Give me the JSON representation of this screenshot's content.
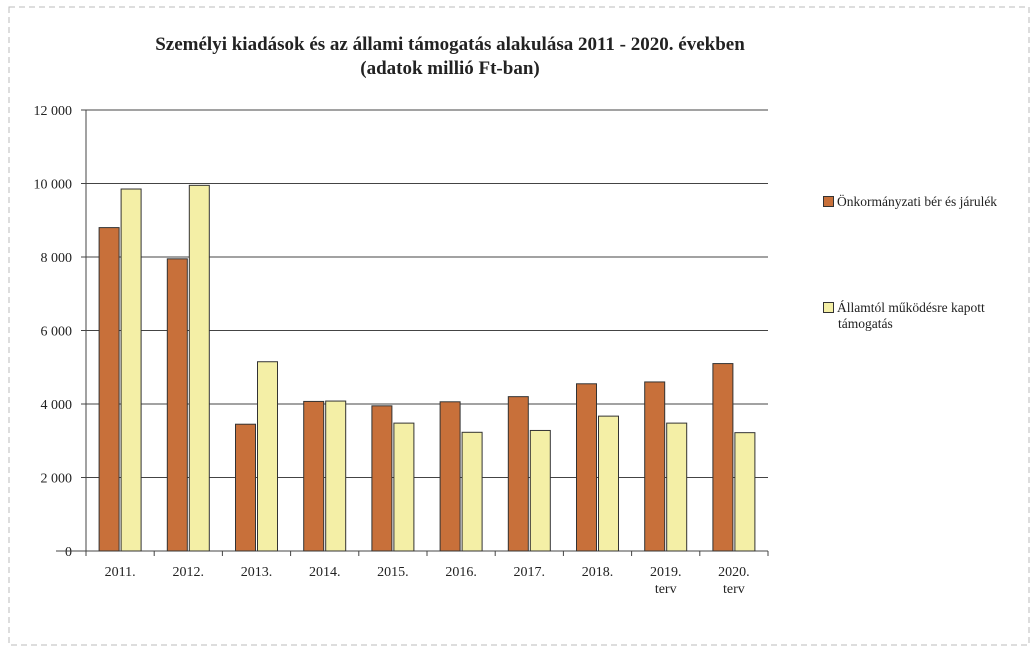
{
  "chart_data": {
    "type": "bar",
    "title": "Személyi kiadások és az állami támogatás alakulása 2011 - 2020. években",
    "subtitle": "(adatok millió Ft-ban)",
    "categories": [
      "2011.",
      "2012.",
      "2013.",
      "2014.",
      "2015.",
      "2016.",
      "2017.",
      "2018.",
      "2019. terv",
      "2020. terv"
    ],
    "category_lines": [
      [
        "2011."
      ],
      [
        "2012."
      ],
      [
        "2013."
      ],
      [
        "2014."
      ],
      [
        "2015."
      ],
      [
        "2016."
      ],
      [
        "2017."
      ],
      [
        "2018."
      ],
      [
        "2019.",
        "terv"
      ],
      [
        "2020.",
        "terv"
      ]
    ],
    "series": [
      {
        "name": "Önkormányzati bér és járulék",
        "values": [
          8800,
          7950,
          3450,
          4070,
          3950,
          4060,
          4200,
          4550,
          4600,
          5100
        ],
        "color": "#c8703a"
      },
      {
        "name": "Államtól működésre kapott támogatás",
        "values": [
          9850,
          9950,
          5150,
          4080,
          3480,
          3230,
          3280,
          3670,
          3480,
          3220
        ],
        "color": "#f4efa6"
      }
    ],
    "ylim": [
      0,
      12000
    ],
    "yticks": [
      0,
      2000,
      4000,
      6000,
      8000,
      10000,
      12000
    ],
    "ytick_labels": [
      "0",
      "2 000",
      "4 000",
      "6 000",
      "8 000",
      "10 000",
      "12 000"
    ],
    "grid": true,
    "legend": "right",
    "xlabel": "",
    "ylabel": ""
  },
  "legend": {
    "item1": "Önkormányzati bér és járulék",
    "item2_line1": "Államtól működésre kapott",
    "item2_line2": "támogatás"
  },
  "title": {
    "line1": "Személyi kiadások és az állami támogatás alakulása 2011 - 2020. években",
    "line2": "(adatok millió Ft-ban)"
  }
}
